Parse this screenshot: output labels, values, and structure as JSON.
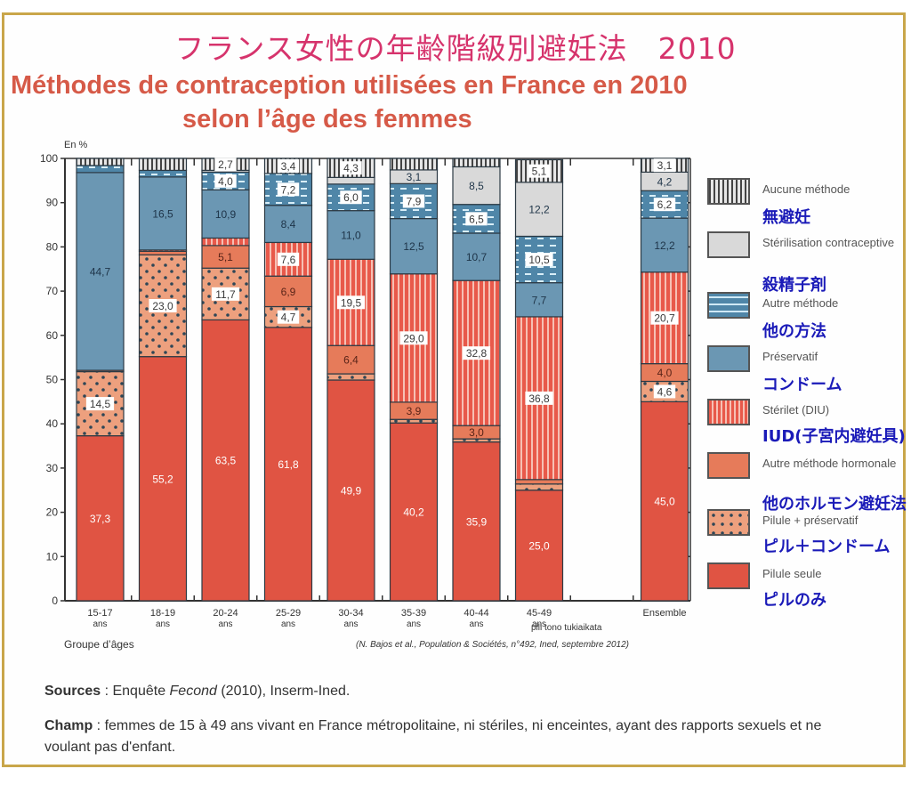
{
  "header": {
    "title_jp": "フランス女性の年齢階級別避妊法　2010",
    "title_fr_line1": "Méthodes de contraception utilisées en France en 2010",
    "title_fr_line2": "selon l’âge des femmes"
  },
  "footer": {
    "sources_label": "Sources",
    "sources_text": " : Enquête ",
    "sources_italic": "Fecond",
    "sources_rest": " (2010), Inserm-Ined.",
    "champ_label": "Champ",
    "champ_text": " : femmes de 15 à 49 ans vivant en France métropolitaine, ni stériles, ni enceintes, ayant des rapports sexuels et ne voulant pas d'enfant."
  },
  "legend": {
    "items": [
      {
        "key": "aucune",
        "fr": "Aucune méthode",
        "jp": "無避妊"
      },
      {
        "key": "sterilisation",
        "fr": "Stérilisation contraceptive",
        "jp": "殺精子剤"
      },
      {
        "key": "autre",
        "fr": "Autre méthode",
        "jp": "他の方法"
      },
      {
        "key": "preservatif",
        "fr": "Préservatif",
        "jp": "コンドーム"
      },
      {
        "key": "sterilet",
        "fr": "Stérilet (DIU)",
        "jp": "IUD(子宮内避妊具)"
      },
      {
        "key": "hormonale",
        "fr": "Autre méthode hormonale",
        "jp": "他のホルモン避妊法"
      },
      {
        "key": "pilule_pres",
        "fr": "Pilule + préservatif",
        "jp": "ピル＋コンドーム"
      },
      {
        "key": "pilule",
        "fr": "Pilule seule",
        "jp": "ピルのみ"
      }
    ]
  },
  "colors": {
    "pilule": "#e05443",
    "pilule_pres": "#eda07e",
    "hormonale": "#e67b5a",
    "sterilet": "#e8594a",
    "preservatif": "#6b97b3",
    "autre": "#5d8fb0",
    "sterilisation": "#d9d9d9",
    "aucune": "#8a8a8a",
    "frame": "#c9a64a",
    "title_jp": "#d6336c",
    "title_fr": "#d65a48",
    "legend_jp": "#1a1ab8"
  },
  "chart_data": {
    "type": "bar",
    "stacked": true,
    "title": "Méthodes de contraception utilisées en France en 2010 selon l’âge des femmes",
    "ylabel": "En %",
    "xlabel": "Groupe d’âges",
    "ylim": [
      0,
      100
    ],
    "yticks": [
      0,
      10,
      20,
      30,
      40,
      50,
      60,
      70,
      80,
      90,
      100
    ],
    "grid": false,
    "legend_position": "right",
    "categories": [
      {
        "line1": "15-17",
        "line2": "ans"
      },
      {
        "line1": "18-19",
        "line2": "ans"
      },
      {
        "line1": "20-24",
        "line2": "ans"
      },
      {
        "line1": "25-29",
        "line2": "ans"
      },
      {
        "line1": "30-34",
        "line2": "ans"
      },
      {
        "line1": "35-39",
        "line2": "ans"
      },
      {
        "line1": "40-44",
        "line2": "ans"
      },
      {
        "line1": "45-49",
        "line2": "ans"
      },
      {
        "line1": "",
        "line2": ""
      },
      {
        "line1": "Ensemble",
        "line2": ""
      }
    ],
    "series": [
      {
        "key": "pilule",
        "name": "Pilule seule",
        "values": [
          37.3,
          55.2,
          63.5,
          61.8,
          49.9,
          40.2,
          35.9,
          25.0,
          null,
          45.0
        ],
        "labels": [
          "37,3",
          "55,2",
          "63,5",
          "61,8",
          "49,9",
          "40,2",
          "35,9",
          "25,0",
          null,
          "45,0"
        ]
      },
      {
        "key": "pilule_pres",
        "name": "Pilule + préservatif",
        "values": [
          14.5,
          23.0,
          11.7,
          4.7,
          1.4,
          0.8,
          0.7,
          1.4,
          null,
          4.6
        ],
        "labels": [
          "14,5",
          "23,0",
          "11,7",
          "4,7",
          null,
          null,
          null,
          null,
          null,
          "4,6"
        ]
      },
      {
        "key": "hormonale",
        "name": "Autre méthode hormonale",
        "values": [
          0.3,
          0.8,
          5.1,
          6.9,
          6.4,
          3.9,
          3.0,
          1.0,
          null,
          4.0
        ],
        "labels": [
          null,
          null,
          "5,1",
          "6,9",
          "6,4",
          "3,9",
          "3,0",
          null,
          null,
          "4,0"
        ]
      },
      {
        "key": "sterilet",
        "name": "Stérilet (DIU)",
        "values": [
          0.0,
          0.3,
          1.7,
          7.6,
          19.5,
          29.0,
          32.8,
          36.8,
          null,
          20.7
        ],
        "labels": [
          null,
          null,
          null,
          "7,6",
          "19,5",
          "29,0",
          "32,8",
          "36,8",
          null,
          "20,7"
        ]
      },
      {
        "key": "preservatif",
        "name": "Préservatif",
        "values": [
          44.7,
          16.5,
          10.9,
          8.4,
          11.0,
          12.5,
          10.7,
          7.7,
          null,
          12.2
        ],
        "labels": [
          "44,7",
          "16,5",
          "10,9",
          "8,4",
          "11,0",
          "12,5",
          "10,7",
          "7,7",
          null,
          "12,2"
        ]
      },
      {
        "key": "autre",
        "name": "Autre méthode",
        "values": [
          1.6,
          1.5,
          4.0,
          7.2,
          6.0,
          7.9,
          6.5,
          10.5,
          null,
          6.2
        ],
        "labels": [
          null,
          null,
          "4,0",
          "7,2",
          "6,0",
          "7,9",
          "6,5",
          "10,5",
          null,
          "6,2"
        ]
      },
      {
        "key": "sterilisation",
        "name": "Stérilisation contraceptive",
        "values": [
          0.0,
          0.0,
          0.4,
          0.0,
          1.5,
          3.1,
          8.5,
          12.2,
          null,
          4.2
        ],
        "labels": [
          null,
          null,
          null,
          null,
          null,
          "3,1",
          "8,5",
          "12,2",
          null,
          "4,2"
        ]
      },
      {
        "key": "aucune",
        "name": "Aucune méthode",
        "values": [
          1.6,
          2.7,
          2.7,
          3.4,
          4.3,
          2.6,
          1.9,
          5.1,
          null,
          3.1
        ],
        "labels": [
          null,
          null,
          "2,7",
          "3,4",
          "4,3",
          null,
          null,
          "5,1",
          null,
          "3,1"
        ]
      }
    ],
    "annotations": [
      {
        "text": "pill tono tukiaikata",
        "near": "45-49 ans"
      },
      {
        "text": "(N. Bajos et al., Population & Sociétés, n°492, Ined, septembre 2012)",
        "position": "bottom-right"
      }
    ]
  }
}
